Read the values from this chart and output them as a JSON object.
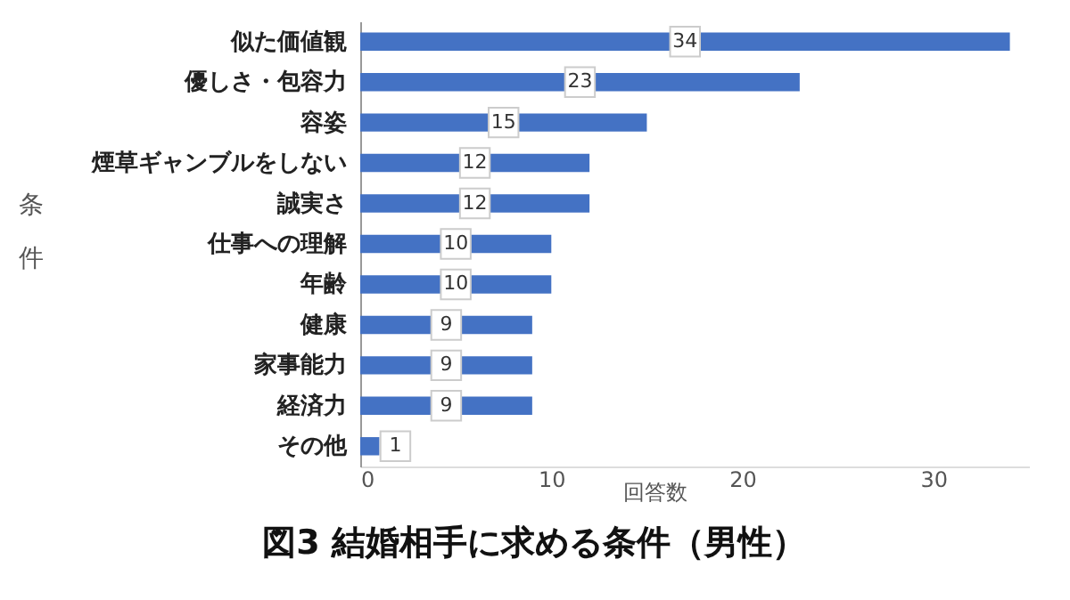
{
  "chart_data": {
    "type": "bar",
    "orientation": "horizontal",
    "title": "図3 結婚相手に求める条件（男性）",
    "xlabel": "回答数",
    "ylabel": "条件",
    "categories": [
      "似た価値観",
      "優しさ・包容力",
      "容姿",
      "煙草ギャンブルをしない",
      "誠実さ",
      "仕事への理解",
      "年齢",
      "健康",
      "家事能力",
      "経済力",
      "その他"
    ],
    "values": [
      34,
      23,
      15,
      12,
      12,
      10,
      10,
      9,
      9,
      9,
      1
    ],
    "color": "#4472c4",
    "xlim": [
      0,
      35
    ],
    "xticks": [
      0,
      10,
      20,
      30
    ],
    "data_labels": true
  }
}
